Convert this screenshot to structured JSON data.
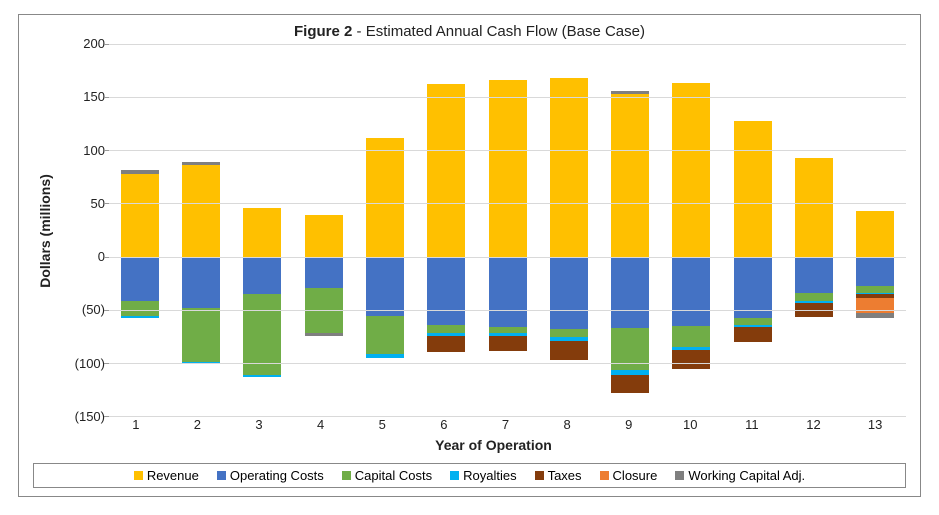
{
  "chart": {
    "title_bold": "Figure 2",
    "title_rest": " - Estimated Annual Cash Flow (Base Case)",
    "title_fontsize": 15,
    "x_label": "Year of Operation",
    "y_label": "Dollars (millions)",
    "axis_label_fontsize": 14,
    "tick_fontsize": 13,
    "background_color": "#ffffff",
    "grid_color": "#d9d9d9",
    "border_color": "#888888",
    "ylim": [
      -150,
      200
    ],
    "y_ticks": [
      200,
      150,
      100,
      50,
      0,
      -50,
      -100,
      -150
    ],
    "y_tick_labels": [
      "200",
      "150",
      "100",
      "50",
      "0",
      "(50)",
      "(100)",
      "(150)"
    ],
    "categories": [
      "1",
      "2",
      "3",
      "4",
      "5",
      "6",
      "7",
      "8",
      "9",
      "10",
      "11",
      "12",
      "13"
    ],
    "bar_width": 0.62,
    "series": [
      {
        "name": "Revenue",
        "color": "#ffc000",
        "values": [
          78,
          86,
          46,
          39,
          112,
          162,
          166,
          168,
          153,
          163,
          128,
          93,
          43
        ]
      },
      {
        "name": "Operating Costs",
        "color": "#4472c4",
        "values": [
          -42,
          -48,
          -35,
          -30,
          -56,
          -64,
          -66,
          -68,
          -67,
          -65,
          -58,
          -34,
          -28
        ]
      },
      {
        "name": "Capital Costs",
        "color": "#70ad47",
        "values": [
          -14,
          -51,
          -76,
          -42,
          -36,
          -8,
          -6,
          -8,
          -40,
          -20,
          -6,
          -8,
          -6
        ]
      },
      {
        "name": "Royalties",
        "color": "#00b0f0",
        "values": [
          -2,
          -2,
          -2,
          0,
          -3,
          -3,
          -3,
          -3,
          -4,
          -3,
          -2,
          -2,
          -1
        ]
      },
      {
        "name": "Taxes",
        "color": "#843c0c",
        "values": [
          0,
          0,
          0,
          0,
          0,
          -15,
          -14,
          -18,
          -17,
          -18,
          -14,
          -13,
          -4
        ]
      },
      {
        "name": "Closure",
        "color": "#ed7d31",
        "values": [
          0,
          0,
          0,
          0,
          0,
          0,
          0,
          0,
          0,
          0,
          0,
          0,
          -14
        ]
      },
      {
        "name": "Working Capital Adj.",
        "color": "#7f7f7f",
        "values": [
          3,
          3,
          0,
          -3,
          0,
          0,
          0,
          0,
          3,
          0,
          0,
          0,
          -5
        ]
      }
    ],
    "legend_fontsize": 13
  }
}
